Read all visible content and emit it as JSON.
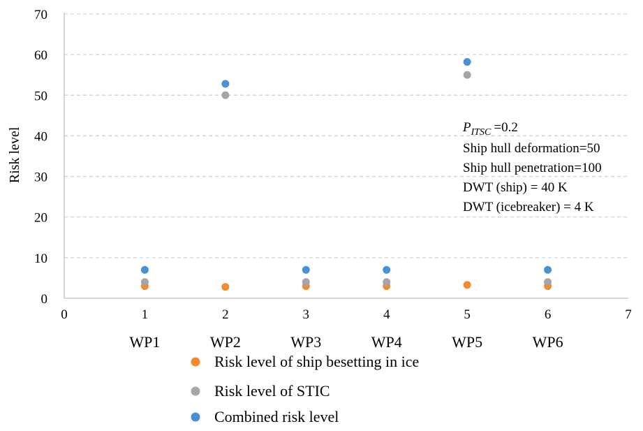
{
  "chart_data": {
    "type": "scatter",
    "title": "",
    "xlabel": "",
    "ylabel": "Risk level",
    "xlim": [
      0,
      7
    ],
    "ylim": [
      0,
      70
    ],
    "x_ticks": [
      "0",
      "1",
      "2",
      "3",
      "4",
      "5",
      "6",
      "7"
    ],
    "y_ticks": [
      "0",
      "10",
      "20",
      "30",
      "40",
      "50",
      "60",
      "70"
    ],
    "categories": [
      "WP1",
      "WP2",
      "WP3",
      "WP4",
      "WP5",
      "WP6"
    ],
    "grid": "horizontal-dashed",
    "legend_position": "bottom",
    "series": [
      {
        "name": "Risk level  of ship besetting  in ice",
        "color": "#F28A30",
        "x": [
          1,
          2,
          3,
          4,
          5,
          6
        ],
        "y": [
          3.0,
          2.8,
          3.0,
          3.0,
          3.3,
          3.0
        ]
      },
      {
        "name": "Risk level  of STIC",
        "color": "#A5A5A5",
        "x": [
          1,
          2,
          3,
          4,
          5,
          6
        ],
        "y": [
          4.0,
          50.0,
          4.0,
          4.0,
          55.0,
          4.0
        ]
      },
      {
        "name": "Combined risk level",
        "color": "#4A90D6",
        "x": [
          1,
          2,
          3,
          4,
          5,
          6
        ],
        "y": [
          7.0,
          52.8,
          7.0,
          7.0,
          58.2,
          7.0
        ]
      }
    ],
    "annotation": {
      "p_symbol": "P",
      "p_subscript": "ITSC",
      "p_value": "=0.2",
      "lines": [
        "Ship hull deformation=50",
        "Ship hull penetration=100",
        "DWT (ship) = 40 K",
        "DWT (icebreaker) = 4 K"
      ]
    }
  }
}
